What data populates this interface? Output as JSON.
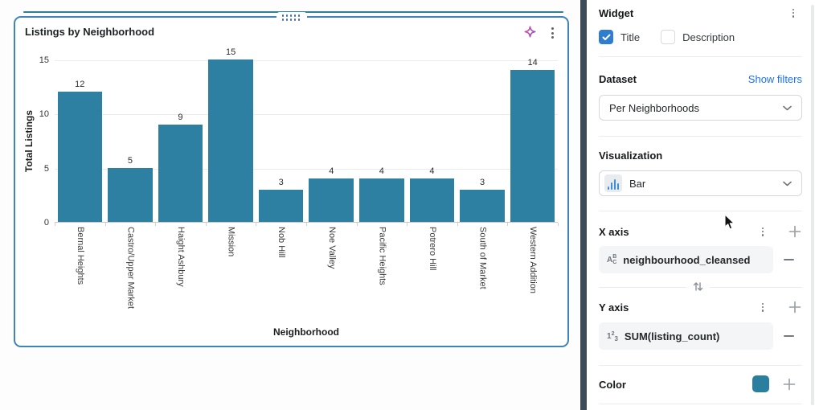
{
  "chart_widget": {
    "title": "Listings by Neighborhood"
  },
  "chart_data": {
    "type": "bar",
    "title": "Listings by Neighborhood",
    "categories": [
      "Bernal Heights",
      "Castro/Upper Market",
      "Haight Ashbury",
      "Mission",
      "Nob Hill",
      "Noe Valley",
      "Pacific Heights",
      "Potrero Hill",
      "South of Market",
      "Western Addition"
    ],
    "values": [
      12,
      5,
      9,
      15,
      3,
      4,
      4,
      4,
      3,
      14
    ],
    "xlabel": "Neighborhood",
    "ylabel": "Total Listings",
    "ylim": [
      0,
      15
    ],
    "yticks": [
      0,
      5,
      10,
      15
    ],
    "bar_color": "#2d80a1",
    "grid": true,
    "legend": false
  },
  "panel": {
    "header": {
      "title": "Widget"
    },
    "toggles": {
      "title_label": "Title",
      "title_checked": true,
      "description_label": "Description",
      "description_checked": false
    },
    "dataset": {
      "label": "Dataset",
      "link_label": "Show filters",
      "selected": "Per Neighborhoods"
    },
    "visualization": {
      "label": "Visualization",
      "selected": "Bar"
    },
    "x_axis": {
      "label": "X axis",
      "field": "neighbourhood_cleansed"
    },
    "y_axis": {
      "label": "Y axis",
      "field": "SUM(listing_count)"
    },
    "color": {
      "label": "Color",
      "swatch": "#2b7f9e"
    }
  }
}
